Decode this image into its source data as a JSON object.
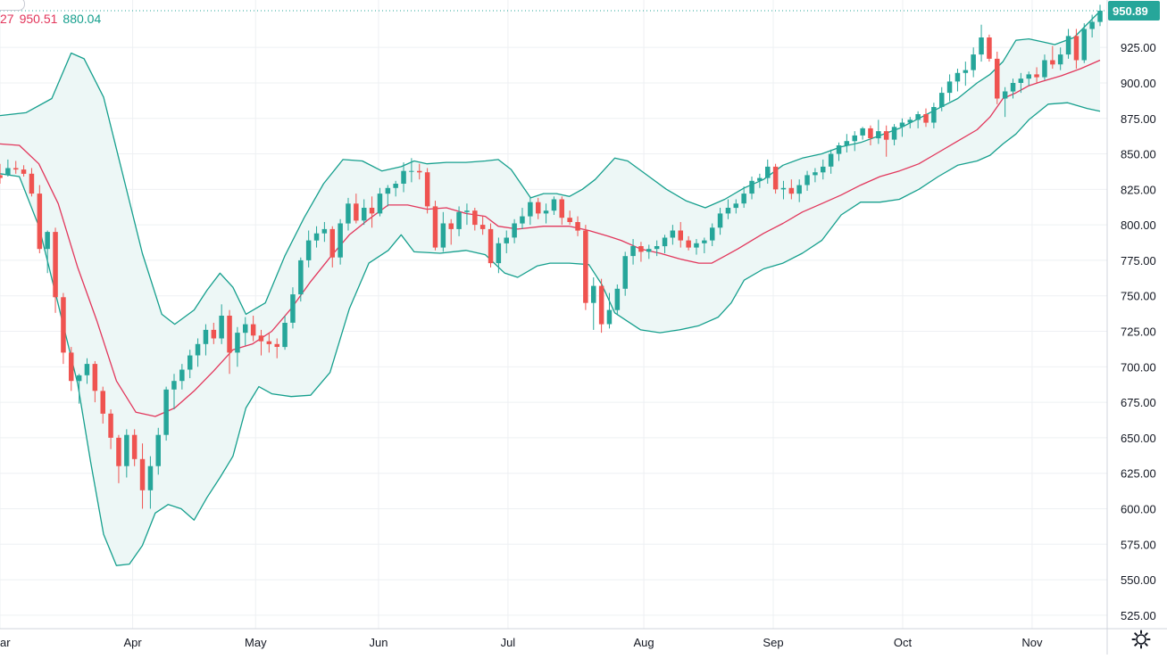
{
  "legend": {
    "upper_partial": "27",
    "upper_value": "950.51",
    "lower_value": "880.04"
  },
  "last_price_label": "950.89",
  "colors": {
    "up": "#26a69a",
    "down": "#ef5350",
    "band": "#159f8d",
    "basis": "#e2365b",
    "band_fill": "#edf7f6",
    "grid": "#eef0f3",
    "axis_text": "#131722",
    "price_tag_bg": "#26a69a"
  },
  "icons": {
    "settings": "gear-icon"
  },
  "chart_data": {
    "type": "candlestick",
    "title": "",
    "indicator": "Bollinger Bands",
    "y_ticks": [
      925,
      900,
      875,
      850,
      825,
      800,
      775,
      750,
      725,
      700,
      675,
      650,
      625,
      600,
      575,
      550,
      525
    ],
    "ylim": [
      515.5,
      958.4
    ],
    "x_domain": [
      0,
      170
    ],
    "x_ticks": [
      {
        "label": "ar",
        "index": 0
      },
      {
        "label": "Apr",
        "index": 20.5
      },
      {
        "label": "May",
        "index": 39.5
      },
      {
        "label": "Jun",
        "index": 58.5
      },
      {
        "label": "Jul",
        "index": 78.5
      },
      {
        "label": "Aug",
        "index": 99.5
      },
      {
        "label": "Sep",
        "index": 119.5
      },
      {
        "label": "Oct",
        "index": 139.5
      },
      {
        "label": "Nov",
        "index": 159.5
      }
    ],
    "upper_band": [
      [
        0,
        877
      ],
      [
        4,
        879
      ],
      [
        8,
        889
      ],
      [
        11,
        921
      ],
      [
        13,
        917
      ],
      [
        16,
        890
      ],
      [
        19,
        835
      ],
      [
        22,
        780
      ],
      [
        25,
        737
      ],
      [
        27,
        730
      ],
      [
        30,
        740
      ],
      [
        32,
        754
      ],
      [
        34,
        766
      ],
      [
        36,
        756
      ],
      [
        38,
        737
      ],
      [
        41,
        745
      ],
      [
        44,
        778
      ],
      [
        47,
        805
      ],
      [
        50,
        829
      ],
      [
        53,
        846
      ],
      [
        56,
        845
      ],
      [
        59,
        838
      ],
      [
        62,
        841
      ],
      [
        64,
        845
      ],
      [
        66,
        843
      ],
      [
        69,
        844
      ],
      [
        72,
        844
      ],
      [
        75,
        845
      ],
      [
        77,
        846
      ],
      [
        79,
        839
      ],
      [
        82,
        819
      ],
      [
        84,
        822
      ],
      [
        86,
        822
      ],
      [
        88,
        820
      ],
      [
        90,
        825
      ],
      [
        92,
        832
      ],
      [
        95,
        847
      ],
      [
        97,
        845
      ],
      [
        100,
        835
      ],
      [
        103,
        825
      ],
      [
        106,
        817
      ],
      [
        109,
        812
      ],
      [
        112,
        818
      ],
      [
        115,
        826
      ],
      [
        118,
        832
      ],
      [
        121,
        842
      ],
      [
        124,
        847
      ],
      [
        127,
        850
      ],
      [
        130,
        855
      ],
      [
        133,
        858
      ],
      [
        136,
        863
      ],
      [
        139,
        868
      ],
      [
        142,
        875
      ],
      [
        145,
        882
      ],
      [
        148,
        889
      ],
      [
        151,
        900
      ],
      [
        153,
        906
      ],
      [
        155,
        915
      ],
      [
        157,
        930
      ],
      [
        159,
        931
      ],
      [
        161,
        929
      ],
      [
        163,
        927
      ],
      [
        166,
        932
      ],
      [
        169,
        946
      ],
      [
        170,
        950.51
      ]
    ],
    "basis": [
      [
        0,
        857
      ],
      [
        3,
        856
      ],
      [
        6,
        843
      ],
      [
        9,
        815
      ],
      [
        12,
        770
      ],
      [
        15,
        732
      ],
      [
        18,
        690
      ],
      [
        21,
        668
      ],
      [
        24,
        665
      ],
      [
        27,
        671
      ],
      [
        30,
        683
      ],
      [
        33,
        697
      ],
      [
        36,
        712
      ],
      [
        39,
        716
      ],
      [
        42,
        725
      ],
      [
        45,
        741
      ],
      [
        48,
        760
      ],
      [
        51,
        777
      ],
      [
        54,
        793
      ],
      [
        57,
        804
      ],
      [
        60,
        814
      ],
      [
        63,
        814
      ],
      [
        66,
        811
      ],
      [
        69,
        812
      ],
      [
        72,
        808
      ],
      [
        75,
        806
      ],
      [
        77,
        799
      ],
      [
        80,
        797
      ],
      [
        84,
        799
      ],
      [
        86,
        799
      ],
      [
        88,
        799
      ],
      [
        91,
        796
      ],
      [
        94,
        792
      ],
      [
        96,
        789
      ],
      [
        99,
        783
      ],
      [
        102,
        780
      ],
      [
        105,
        776
      ],
      [
        108,
        773
      ],
      [
        110,
        773
      ],
      [
        112,
        778
      ],
      [
        114,
        783
      ],
      [
        118,
        794
      ],
      [
        121,
        801
      ],
      [
        124,
        809
      ],
      [
        127,
        815
      ],
      [
        130,
        821
      ],
      [
        133,
        828
      ],
      [
        136,
        834
      ],
      [
        139,
        838
      ],
      [
        142,
        843
      ],
      [
        145,
        851
      ],
      [
        148,
        859
      ],
      [
        151,
        867
      ],
      [
        153,
        876
      ],
      [
        155,
        889
      ],
      [
        157,
        893
      ],
      [
        159,
        898
      ],
      [
        161,
        901
      ],
      [
        164,
        905
      ],
      [
        167,
        910
      ],
      [
        170,
        916
      ]
    ],
    "lower_band": [
      [
        0,
        836
      ],
      [
        3,
        834
      ],
      [
        6,
        799
      ],
      [
        9,
        744
      ],
      [
        12,
        688
      ],
      [
        14,
        633
      ],
      [
        16,
        582
      ],
      [
        18,
        560
      ],
      [
        20,
        561
      ],
      [
        22,
        574
      ],
      [
        24,
        597
      ],
      [
        26,
        603
      ],
      [
        28,
        600
      ],
      [
        30,
        592
      ],
      [
        32,
        608
      ],
      [
        34,
        622
      ],
      [
        36,
        637
      ],
      [
        38,
        671
      ],
      [
        40,
        686
      ],
      [
        42,
        681
      ],
      [
        45,
        679
      ],
      [
        48,
        680
      ],
      [
        51,
        696
      ],
      [
        54,
        741
      ],
      [
        57,
        773
      ],
      [
        60,
        782
      ],
      [
        62,
        793
      ],
      [
        64,
        781
      ],
      [
        68,
        780
      ],
      [
        72,
        782
      ],
      [
        75,
        779
      ],
      [
        78,
        766
      ],
      [
        80,
        763
      ],
      [
        83,
        771
      ],
      [
        85,
        773
      ],
      [
        88,
        773
      ],
      [
        91,
        772
      ],
      [
        93,
        758
      ],
      [
        95,
        738
      ],
      [
        97,
        732
      ],
      [
        99,
        726
      ],
      [
        102,
        724
      ],
      [
        105,
        726
      ],
      [
        108,
        729
      ],
      [
        111,
        735
      ],
      [
        113,
        745
      ],
      [
        115,
        761
      ],
      [
        118,
        769
      ],
      [
        121,
        773
      ],
      [
        124,
        780
      ],
      [
        127,
        789
      ],
      [
        130,
        807
      ],
      [
        133,
        816
      ],
      [
        136,
        816
      ],
      [
        139,
        818
      ],
      [
        142,
        825
      ],
      [
        145,
        834
      ],
      [
        148,
        842
      ],
      [
        151,
        845
      ],
      [
        153,
        849
      ],
      [
        155,
        857
      ],
      [
        157,
        864
      ],
      [
        159,
        874
      ],
      [
        162,
        885
      ],
      [
        165,
        886
      ],
      [
        168,
        882
      ],
      [
        170,
        880
      ]
    ],
    "ohlc": [
      [
        835,
        843,
        829,
        833
      ],
      [
        835,
        846,
        834,
        840
      ],
      [
        840,
        845,
        836,
        839
      ],
      [
        839,
        842,
        834,
        836
      ],
      [
        836,
        840,
        820,
        822
      ],
      [
        822,
        828,
        780,
        783
      ],
      [
        783,
        796,
        766,
        795
      ],
      [
        795,
        798,
        738,
        749
      ],
      [
        749,
        752,
        702,
        710
      ],
      [
        710,
        714,
        683,
        690
      ],
      [
        690,
        695,
        674,
        694
      ],
      [
        694,
        706,
        688,
        702
      ],
      [
        702,
        704,
        675,
        683
      ],
      [
        683,
        686,
        660,
        667
      ],
      [
        667,
        670,
        642,
        650
      ],
      [
        650,
        652,
        618,
        630
      ],
      [
        630,
        656,
        622,
        652
      ],
      [
        652,
        656,
        630,
        635
      ],
      [
        635,
        646,
        600,
        613
      ],
      [
        613,
        637,
        600,
        630
      ],
      [
        630,
        657,
        624,
        652
      ],
      [
        652,
        686,
        648,
        684
      ],
      [
        684,
        695,
        670,
        690
      ],
      [
        690,
        702,
        684,
        698
      ],
      [
        698,
        712,
        692,
        708
      ],
      [
        708,
        720,
        700,
        716
      ],
      [
        716,
        730,
        708,
        726
      ],
      [
        726,
        731,
        716,
        720
      ],
      [
        720,
        744,
        716,
        736
      ],
      [
        736,
        740,
        695,
        710
      ],
      [
        710,
        728,
        700,
        724
      ],
      [
        724,
        735,
        715,
        730
      ],
      [
        730,
        736,
        718,
        722
      ],
      [
        722,
        726,
        708,
        718
      ],
      [
        718,
        724,
        710,
        716
      ],
      [
        716,
        720,
        706,
        714
      ],
      [
        714,
        736,
        712,
        731
      ],
      [
        731,
        756,
        727,
        751
      ],
      [
        751,
        777,
        746,
        775
      ],
      [
        775,
        796,
        770,
        789
      ],
      [
        789,
        799,
        784,
        794
      ],
      [
        794,
        802,
        788,
        797
      ],
      [
        797,
        799,
        770,
        777
      ],
      [
        777,
        804,
        772,
        801
      ],
      [
        801,
        819,
        796,
        815
      ],
      [
        815,
        822,
        801,
        803
      ],
      [
        803,
        818,
        800,
        812
      ],
      [
        812,
        820,
        798,
        808
      ],
      [
        808,
        826,
        806,
        822
      ],
      [
        822,
        828,
        813,
        826
      ],
      [
        826,
        831,
        820,
        829
      ],
      [
        829,
        844,
        823,
        838
      ],
      [
        838,
        847,
        830,
        838
      ],
      [
        838,
        843,
        832,
        837
      ],
      [
        837,
        840,
        808,
        813
      ],
      [
        813,
        817,
        782,
        784
      ],
      [
        784,
        809,
        781,
        801
      ],
      [
        801,
        804,
        786,
        797
      ],
      [
        797,
        813,
        792,
        809
      ],
      [
        809,
        815,
        800,
        810
      ],
      [
        810,
        812,
        796,
        800
      ],
      [
        800,
        806,
        793,
        797
      ],
      [
        797,
        801,
        770,
        773
      ],
      [
        773,
        791,
        766,
        787
      ],
      [
        787,
        796,
        780,
        791
      ],
      [
        791,
        804,
        787,
        801
      ],
      [
        801,
        812,
        797,
        806
      ],
      [
        806,
        820,
        800,
        816
      ],
      [
        816,
        819,
        804,
        808
      ],
      [
        808,
        815,
        801,
        810
      ],
      [
        810,
        820,
        807,
        818
      ],
      [
        818,
        820,
        800,
        805
      ],
      [
        805,
        810,
        800,
        802
      ],
      [
        802,
        806,
        792,
        796
      ],
      [
        796,
        800,
        740,
        745
      ],
      [
        745,
        763,
        726,
        757
      ],
      [
        757,
        762,
        724,
        730
      ],
      [
        730,
        752,
        727,
        740
      ],
      [
        740,
        758,
        737,
        755
      ],
      [
        755,
        781,
        750,
        778
      ],
      [
        778,
        790,
        772,
        785
      ],
      [
        785,
        788,
        774,
        781
      ],
      [
        781,
        786,
        776,
        783
      ],
      [
        783,
        789,
        778,
        785
      ],
      [
        785,
        793,
        780,
        791
      ],
      [
        791,
        800,
        786,
        796
      ],
      [
        796,
        802,
        784,
        789
      ],
      [
        789,
        792,
        782,
        784
      ],
      [
        784,
        790,
        779,
        787
      ],
      [
        787,
        791,
        780,
        789
      ],
      [
        789,
        801,
        785,
        798
      ],
      [
        798,
        812,
        793,
        808
      ],
      [
        808,
        818,
        804,
        812
      ],
      [
        812,
        818,
        808,
        815
      ],
      [
        815,
        827,
        812,
        822
      ],
      [
        822,
        834,
        818,
        831
      ],
      [
        831,
        836,
        826,
        833
      ],
      [
        833,
        846,
        829,
        841
      ],
      [
        841,
        843,
        822,
        825
      ],
      [
        825,
        831,
        818,
        826
      ],
      [
        826,
        832,
        818,
        822
      ],
      [
        822,
        832,
        816,
        828
      ],
      [
        828,
        838,
        824,
        835
      ],
      [
        835,
        840,
        830,
        837
      ],
      [
        837,
        846,
        832,
        841
      ],
      [
        841,
        853,
        836,
        850
      ],
      [
        850,
        858,
        845,
        856
      ],
      [
        856,
        864,
        851,
        859
      ],
      [
        859,
        866,
        852,
        863
      ],
      [
        863,
        869,
        860,
        868
      ],
      [
        868,
        870,
        856,
        861
      ],
      [
        861,
        874,
        857,
        866
      ],
      [
        866,
        870,
        848,
        860
      ],
      [
        860,
        871,
        856,
        869
      ],
      [
        869,
        875,
        862,
        872
      ],
      [
        872,
        876,
        868,
        874
      ],
      [
        874,
        880,
        868,
        878
      ],
      [
        878,
        882,
        869,
        872
      ],
      [
        872,
        886,
        868,
        883
      ],
      [
        883,
        897,
        880,
        893
      ],
      [
        893,
        906,
        887,
        901
      ],
      [
        901,
        910,
        894,
        907
      ],
      [
        907,
        915,
        898,
        909
      ],
      [
        909,
        925,
        904,
        920
      ],
      [
        920,
        941,
        915,
        932
      ],
      [
        932,
        934,
        915,
        917
      ],
      [
        917,
        922,
        885,
        889
      ],
      [
        889,
        897,
        876,
        894
      ],
      [
        894,
        903,
        889,
        900
      ],
      [
        900,
        907,
        893,
        903
      ],
      [
        903,
        908,
        898,
        906
      ],
      [
        906,
        911,
        900,
        904
      ],
      [
        904,
        920,
        902,
        916
      ],
      [
        916,
        926,
        910,
        913
      ],
      [
        913,
        925,
        909,
        920
      ],
      [
        920,
        938,
        917,
        933
      ],
      [
        933,
        938,
        910,
        916
      ],
      [
        916,
        942,
        914,
        938
      ],
      [
        938,
        948,
        932,
        943
      ],
      [
        943,
        955,
        940,
        950.89
      ]
    ]
  }
}
